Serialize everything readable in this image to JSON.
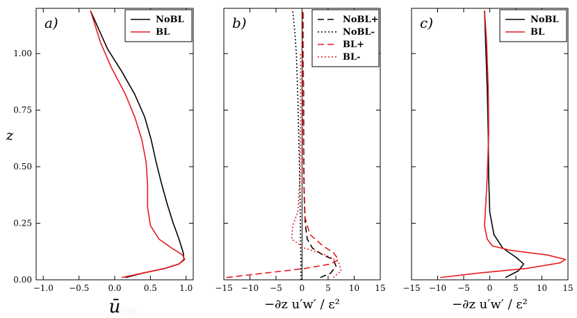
{
  "chart_data": [
    {
      "type": "line",
      "panel_label": "a)",
      "xlabel": "ū",
      "ylabel": "z",
      "xlim": [
        -1.1,
        1.1
      ],
      "ylim": [
        0,
        1.2
      ],
      "xticks": [
        -1.0,
        -0.5,
        0.0,
        0.5,
        1.0
      ],
      "xtick_labels": [
        "−1.0",
        "−0.5",
        "0.0",
        "0.5",
        "1.0"
      ],
      "yticks": [
        0.0,
        0.25,
        0.5,
        0.75,
        1.0
      ],
      "ytick_labels": [
        "0.00",
        "0.25",
        "0.50",
        "0.75",
        "1.00"
      ],
      "legend": {
        "loc": "upper right",
        "entries": [
          "NoBL",
          "BL"
        ]
      },
      "series": [
        {
          "name": "NoBL",
          "color": "#000000",
          "style": "solid",
          "x": [
            0.15,
            0.4,
            0.7,
            0.9,
            0.97,
            0.96,
            0.9,
            0.82,
            0.74,
            0.66,
            0.58,
            0.51,
            0.42,
            0.28,
            0.1,
            -0.1,
            -0.34
          ],
          "y": [
            0.01,
            0.03,
            0.05,
            0.07,
            0.09,
            0.12,
            0.18,
            0.25,
            0.33,
            0.42,
            0.52,
            0.62,
            0.72,
            0.82,
            0.92,
            1.02,
            1.19
          ]
        },
        {
          "name": "BL",
          "color": "#e8191d",
          "style": "solid",
          "x": [
            0.1,
            0.4,
            0.7,
            0.9,
            0.98,
            0.95,
            0.8,
            0.62,
            0.5,
            0.46,
            0.46,
            0.44,
            0.38,
            0.28,
            0.15,
            -0.05,
            -0.2,
            -0.34
          ],
          "y": [
            0.01,
            0.03,
            0.05,
            0.07,
            0.09,
            0.11,
            0.14,
            0.18,
            0.24,
            0.32,
            0.42,
            0.52,
            0.62,
            0.72,
            0.82,
            0.94,
            1.05,
            1.19
          ]
        }
      ]
    },
    {
      "type": "line",
      "panel_label": "b)",
      "xlabel": "−∂z u′w′ / ε²",
      "xlim": [
        -15,
        15
      ],
      "ylim": [
        0,
        1.2
      ],
      "xticks": [
        -15,
        -10,
        -5,
        0,
        5,
        10,
        15
      ],
      "xtick_labels": [
        "−15",
        "−10",
        "−5",
        "0",
        "5",
        "10",
        "15"
      ],
      "vline": 0,
      "legend": {
        "loc": "upper right",
        "entries": [
          "NoBL+",
          "NoBL-",
          "BL+",
          "BL-"
        ]
      },
      "series": [
        {
          "name": "NoBL+",
          "color": "#000000",
          "style": "dashed",
          "x": [
            3.5,
            5.5,
            6.5,
            6.0,
            4.0,
            2.0,
            1.0,
            0.6,
            0.4,
            0.3,
            0.3,
            0.2,
            0.2
          ],
          "y": [
            0.01,
            0.03,
            0.06,
            0.09,
            0.11,
            0.14,
            0.18,
            0.25,
            0.4,
            0.6,
            0.8,
            1.0,
            1.19
          ]
        },
        {
          "name": "NoBL-",
          "color": "#000000",
          "style": "dotted",
          "x": [
            -0.2,
            -0.3,
            -0.4,
            -0.6,
            -0.8,
            -1.1,
            -1.4,
            -1.8
          ],
          "y": [
            0.0,
            0.2,
            0.4,
            0.6,
            0.8,
            1.0,
            1.1,
            1.19
          ]
        },
        {
          "name": "BL+",
          "color": "#e8191d",
          "style": "dashed",
          "x": [
            -14.5,
            -7.0,
            0.5,
            5.5,
            7.0,
            6.0,
            4.0,
            1.5,
            0.5,
            0.3,
            0.2,
            0.2,
            0.2
          ],
          "y": [
            0.01,
            0.03,
            0.05,
            0.07,
            0.09,
            0.12,
            0.15,
            0.2,
            0.28,
            0.45,
            0.7,
            1.0,
            1.19
          ]
        },
        {
          "name": "BL-",
          "color": "#e8191d",
          "style": "dotted",
          "x": [
            6.0,
            7.5,
            7.0,
            4.5,
            0.5,
            -2.0,
            -1.8,
            -0.8,
            -0.4,
            -0.3,
            -0.3
          ],
          "y": [
            0.01,
            0.04,
            0.08,
            0.11,
            0.14,
            0.18,
            0.24,
            0.3,
            0.45,
            0.7,
            1.0
          ]
        }
      ]
    },
    {
      "type": "line",
      "panel_label": "c)",
      "xlabel": "−∂z u′w′ / ε²",
      "xlim": [
        -15,
        15
      ],
      "ylim": [
        0,
        1.2
      ],
      "xticks": [
        -15,
        -10,
        -5,
        0,
        5,
        10,
        15
      ],
      "xtick_labels": [
        "−15",
        "−10",
        "−5",
        "0",
        "5",
        "10",
        "15"
      ],
      "legend": {
        "loc": "upper right",
        "entries": [
          "NoBL",
          "BL"
        ]
      },
      "series": [
        {
          "name": "NoBL",
          "color": "#000000",
          "style": "solid",
          "x": [
            3.0,
            5.5,
            6.5,
            5.0,
            2.5,
            0.8,
            0.0,
            -0.2,
            -0.3,
            -0.5,
            -0.8,
            -1.0
          ],
          "y": [
            0.01,
            0.04,
            0.07,
            0.1,
            0.14,
            0.2,
            0.3,
            0.45,
            0.65,
            0.85,
            1.05,
            1.19
          ]
        },
        {
          "name": "BL",
          "color": "#e8191d",
          "style": "solid",
          "x": [
            -9.5,
            -2.0,
            7.0,
            13.5,
            14.5,
            11.0,
            4.0,
            0.5,
            -0.5,
            -1.0,
            -0.8,
            -0.5,
            -0.2,
            -0.3,
            -0.6,
            -1.0
          ],
          "y": [
            0.01,
            0.03,
            0.05,
            0.075,
            0.09,
            0.11,
            0.13,
            0.15,
            0.18,
            0.24,
            0.32,
            0.45,
            0.65,
            0.85,
            1.05,
            1.19
          ]
        }
      ]
    }
  ],
  "footer": {
    "faint_text": "test"
  }
}
